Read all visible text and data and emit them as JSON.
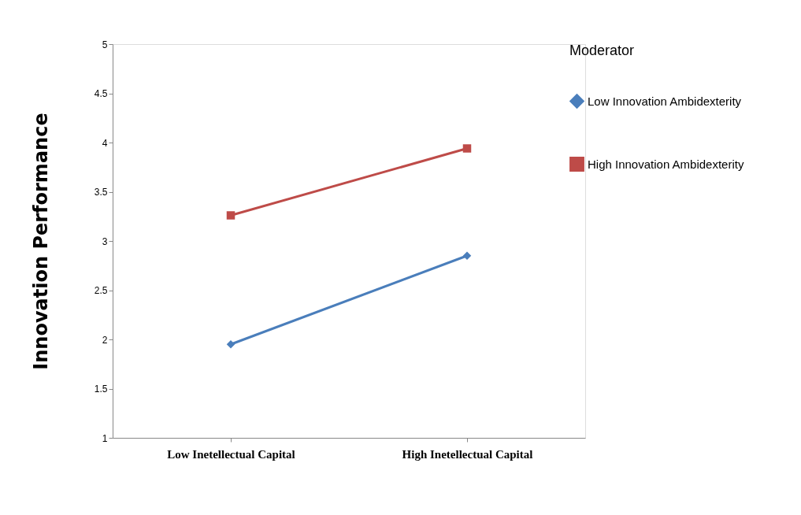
{
  "chart_data": {
    "type": "line",
    "ylabel": "Innovation Performance",
    "legend_title": "Moderator",
    "categories": [
      "Low Inetellectual Capital",
      "High Inetellectual Capital"
    ],
    "series": [
      {
        "name": "Low Innovation Ambidexterity",
        "color": "#4a7ebb",
        "marker": "diamond",
        "values": [
          1.95,
          2.85
        ]
      },
      {
        "name": "High Innovation Ambidexterity",
        "color": "#be4b48",
        "marker": "square",
        "values": [
          3.26,
          3.94
        ]
      }
    ],
    "ylim": [
      1,
      5
    ],
    "yticks": [
      1,
      1.5,
      2,
      2.5,
      3,
      3.5,
      4,
      4.5,
      5
    ],
    "grid": false,
    "legend": "right",
    "line_style": "solid"
  }
}
